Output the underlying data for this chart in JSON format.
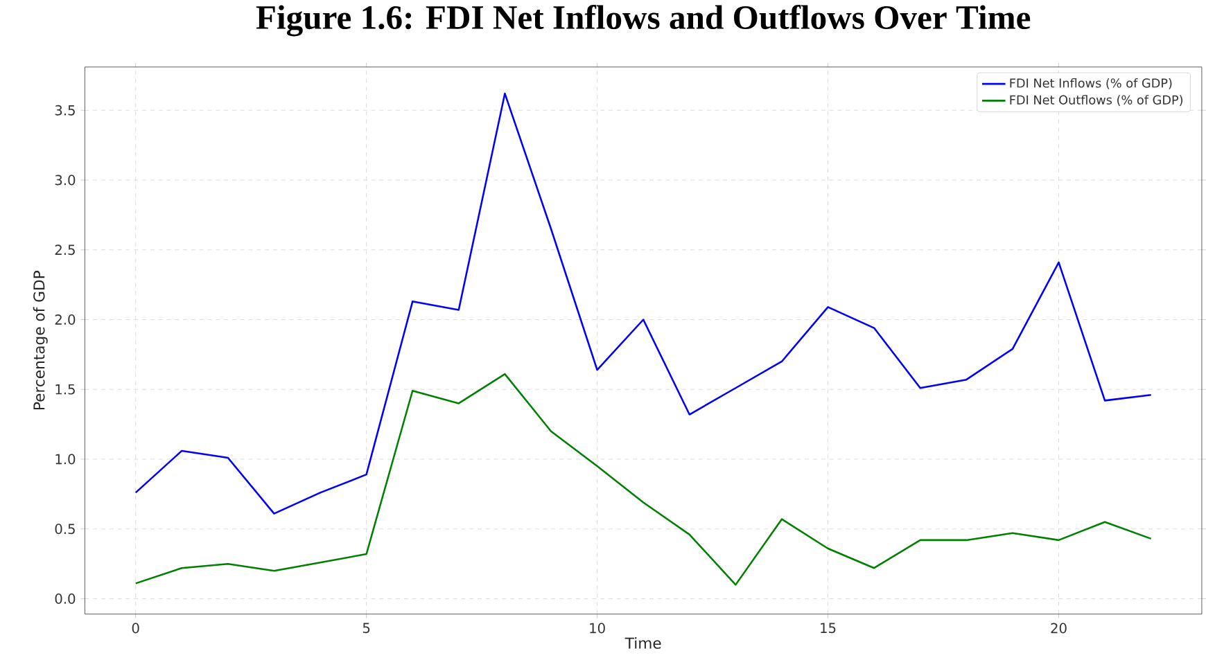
{
  "chart_data": {
    "type": "line",
    "title": "Figure 1.6: FDI Net Inflows and Outflows Over Time",
    "xlabel": "Time",
    "ylabel": "Percentage of GDP",
    "x": [
      0,
      1,
      2,
      3,
      4,
      5,
      6,
      7,
      8,
      9,
      10,
      11,
      12,
      13,
      14,
      15,
      16,
      17,
      18,
      19,
      20,
      21,
      22
    ],
    "series": [
      {
        "name": "FDI Net Inflows (% of GDP)",
        "color": "#0000ff",
        "values": [
          0.76,
          1.06,
          1.01,
          0.61,
          0.76,
          0.89,
          2.13,
          2.07,
          3.62,
          2.65,
          1.64,
          2.0,
          1.32,
          1.51,
          1.7,
          2.09,
          1.94,
          1.51,
          1.57,
          1.79,
          2.41,
          1.42,
          1.46
        ]
      },
      {
        "name": "FDI Net Outflows (% of GDP)",
        "color": "#008000",
        "values": [
          0.11,
          0.22,
          0.25,
          0.2,
          0.26,
          0.32,
          1.49,
          1.4,
          1.61,
          1.2,
          0.95,
          0.69,
          0.46,
          0.1,
          0.57,
          0.36,
          0.22,
          0.42,
          0.42,
          0.47,
          0.42,
          0.55,
          0.43
        ]
      }
    ],
    "xlim": [
      -1.1,
      23.1
    ],
    "ylim": [
      -0.11,
      3.81
    ],
    "xticks": [
      0,
      5,
      10,
      15,
      20
    ],
    "yticks": [
      {
        "value": 0,
        "label": "0.0"
      },
      {
        "value": 0.5,
        "label": "0.5"
      },
      {
        "value": 1,
        "label": "1.0"
      },
      {
        "value": 1.5,
        "label": "1.5"
      },
      {
        "value": 2,
        "label": "2.0"
      },
      {
        "value": 2.5,
        "label": "2.5"
      },
      {
        "value": 3,
        "label": "3.0"
      },
      {
        "value": 3.5,
        "label": "3.5"
      }
    ],
    "grid": true,
    "legend": "top right",
    "marker": "none",
    "line_style": "solid"
  }
}
